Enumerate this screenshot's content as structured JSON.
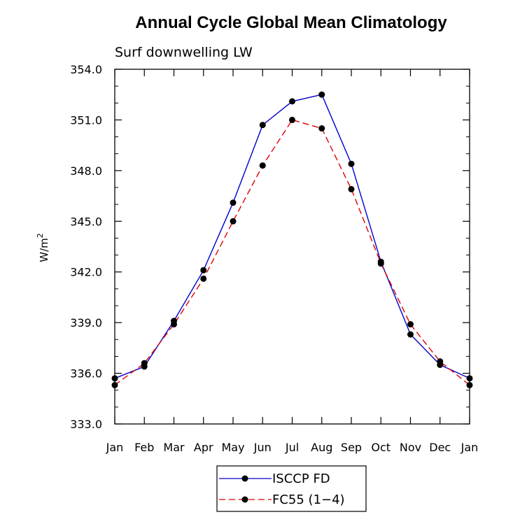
{
  "chart_data": {
    "type": "line",
    "title": "Annual Cycle Global Mean Climatology",
    "subtitle": "Surf downwelling LW",
    "ylabel": "W/m",
    "ylabel_superscript": "2",
    "xlabel": "",
    "categories": [
      "Jan",
      "Feb",
      "Mar",
      "Apr",
      "May",
      "Jun",
      "Jul",
      "Aug",
      "Sep",
      "Oct",
      "Nov",
      "Dec",
      "Jan"
    ],
    "ylim": [
      333.0,
      354.0
    ],
    "yticks": [
      "333.0",
      "336.0",
      "339.0",
      "342.0",
      "345.0",
      "348.0",
      "351.0",
      "354.0"
    ],
    "series": [
      {
        "name": "ISCCP FD",
        "color": "#0000cc",
        "dash": "solid",
        "values": [
          335.7,
          336.4,
          339.1,
          342.1,
          346.1,
          350.7,
          352.1,
          352.5,
          348.4,
          342.6,
          338.3,
          336.5,
          335.7
        ]
      },
      {
        "name": "FC55 (1-4)",
        "color": "#e00000",
        "dash": "dashed",
        "values": [
          335.3,
          336.6,
          338.9,
          341.6,
          345.0,
          348.3,
          351.0,
          350.5,
          346.9,
          342.5,
          338.9,
          336.7,
          335.3
        ]
      }
    ],
    "legend": {
      "position": "bottom-center",
      "entries": [
        "ISCCP FD",
        "FC55 (1−4)"
      ]
    },
    "grid": false
  }
}
